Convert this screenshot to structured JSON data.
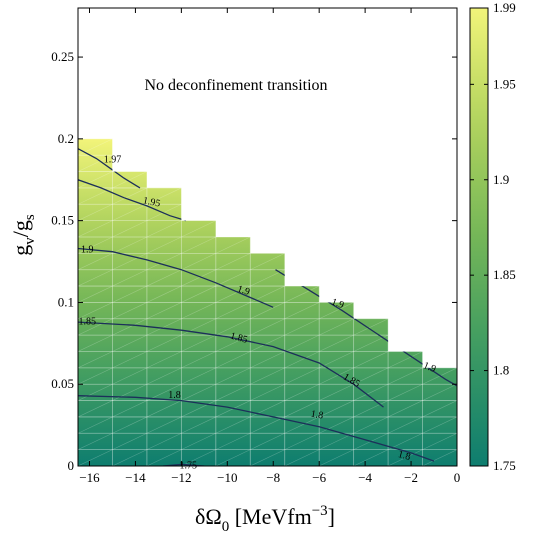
{
  "chart_data": {
    "type": "heatmap",
    "title": "",
    "annotation": "No deconfinement transition",
    "xlabel": {
      "main": "δΩ",
      "sub": "0",
      "unit_open": " [MeVfm",
      "unit_sup": "−3",
      "unit_close": "]"
    },
    "ylabel": {
      "g1": "g",
      "sub1": "v",
      "slash": "/",
      "g2": "g",
      "sub2": "s"
    },
    "xlim": [
      -16.5,
      0
    ],
    "ylim": [
      0,
      0.28
    ],
    "xticks": [
      -16,
      -14,
      -12,
      -10,
      -8,
      -6,
      -4,
      -2,
      0
    ],
    "xtick_labels": [
      "−16",
      "−14",
      "−12",
      "−10",
      "−8",
      "−6",
      "−4",
      "−2",
      "0"
    ],
    "yticks": [
      0,
      0.05,
      0.1,
      0.15,
      0.2,
      0.25
    ],
    "ytick_labels": [
      "0",
      "0.05",
      "0.1",
      "0.15",
      "0.2",
      "0.25"
    ],
    "grid_x_step": 1.5,
    "grid_y_step": 0.01,
    "boundary": [
      {
        "x": [
          -16.5,
          -15.0
        ],
        "ymax": 0.2
      },
      {
        "x": [
          -15.0,
          -13.5
        ],
        "ymax": 0.18
      },
      {
        "x": [
          -13.5,
          -12.0
        ],
        "ymax": 0.17
      },
      {
        "x": [
          -12.0,
          -10.5
        ],
        "ymax": 0.15
      },
      {
        "x": [
          -10.5,
          -9.0
        ],
        "ymax": 0.14
      },
      {
        "x": [
          -9.0,
          -7.5
        ],
        "ymax": 0.13
      },
      {
        "x": [
          -7.5,
          -6.0
        ],
        "ymax": 0.11
      },
      {
        "x": [
          -6.0,
          -4.5
        ],
        "ymax": 0.1
      },
      {
        "x": [
          -4.5,
          -3.0
        ],
        "ymax": 0.09
      },
      {
        "x": [
          -3.0,
          -1.5
        ],
        "ymax": 0.07
      },
      {
        "x": [
          -1.5,
          0.0
        ],
        "ymax": 0.06
      }
    ],
    "colorbar": {
      "min": 1.75,
      "max": 1.99,
      "ticks": [
        1.75,
        1.8,
        1.85,
        1.9,
        1.95,
        1.99
      ],
      "tick_labels": [
        "1.75",
        "1.8",
        "1.85",
        "1.9",
        "1.95",
        "1.99"
      ],
      "colormap": [
        "#0e7d6f",
        "#3c9a62",
        "#74b658",
        "#b1d35d",
        "#f2f47a"
      ]
    },
    "contours": [
      {
        "level": 1.97,
        "label": "1.97",
        "x": [
          -16.5,
          -15.7,
          -15.1,
          -14.5,
          -13.8
        ],
        "y": [
          0.194,
          0.188,
          0.182,
          0.176,
          0.17
        ]
      },
      {
        "level": 1.95,
        "label": "1.95",
        "x": [
          -16.5,
          -15.5,
          -14.5,
          -13.5,
          -12.5,
          -11.8
        ],
        "y": [
          0.175,
          0.17,
          0.164,
          0.159,
          0.153,
          0.15
        ]
      },
      {
        "level": 1.9,
        "label": "1.9",
        "x": [
          -16.5,
          -15.0,
          -13.5,
          -12.0,
          -10.5,
          -9.0,
          -8.0
        ],
        "y": [
          0.133,
          0.131,
          0.126,
          0.12,
          0.112,
          0.103,
          0.097
        ]
      },
      {
        "level": 1.9,
        "label": "1.9",
        "x": [
          -7.9,
          -6.5,
          -5.0,
          -3.5,
          -2.0,
          -0.5,
          0.0
        ],
        "y": [
          0.12,
          0.108,
          0.095,
          0.081,
          0.067,
          0.053,
          0.049
        ]
      },
      {
        "level": 1.85,
        "label": "1.85",
        "x": [
          -16.5,
          -14.0,
          -12.0,
          -10.0,
          -8.0,
          -6.0,
          -4.5,
          -3.2
        ],
        "y": [
          0.088,
          0.086,
          0.083,
          0.079,
          0.073,
          0.063,
          0.05,
          0.036
        ]
      },
      {
        "level": 1.8,
        "label": "1.8",
        "x": [
          -16.5,
          -14.0,
          -12.0,
          -10.0,
          -8.0,
          -6.0,
          -4.0,
          -2.0,
          -1.0
        ],
        "y": [
          0.043,
          0.042,
          0.04,
          0.036,
          0.03,
          0.024,
          0.016,
          0.008,
          0.003
        ]
      },
      {
        "level": 1.75,
        "label": "1.75",
        "x": [
          -12.8,
          -12.0,
          -11.0
        ],
        "y": [
          0.0,
          0.001,
          0.0
        ]
      }
    ],
    "contour_labels": [
      {
        "text": "1.97",
        "x": -15.0,
        "y": 0.187,
        "angle": 0
      },
      {
        "text": "1.95",
        "x": -13.3,
        "y": 0.161,
        "angle": 12
      },
      {
        "text": "1.9",
        "x": -16.1,
        "y": 0.132,
        "angle": 0
      },
      {
        "text": "1.9",
        "x": -9.3,
        "y": 0.107,
        "angle": 18
      },
      {
        "text": "1.9",
        "x": -5.2,
        "y": 0.099,
        "angle": 20
      },
      {
        "text": "1.9",
        "x": -1.2,
        "y": 0.06,
        "angle": 22
      },
      {
        "text": "1.85",
        "x": -16.1,
        "y": 0.088,
        "angle": 0
      },
      {
        "text": "1.85",
        "x": -9.5,
        "y": 0.078,
        "angle": 15
      },
      {
        "text": "1.85",
        "x": -4.6,
        "y": 0.052,
        "angle": 30
      },
      {
        "text": "1.8",
        "x": -12.3,
        "y": 0.043,
        "angle": 0
      },
      {
        "text": "1.8",
        "x": -6.1,
        "y": 0.031,
        "angle": 10
      },
      {
        "text": "1.8",
        "x": -2.3,
        "y": 0.006,
        "angle": 15
      },
      {
        "text": "1.75",
        "x": -11.7,
        "y": 0.0,
        "angle": 0
      }
    ]
  }
}
